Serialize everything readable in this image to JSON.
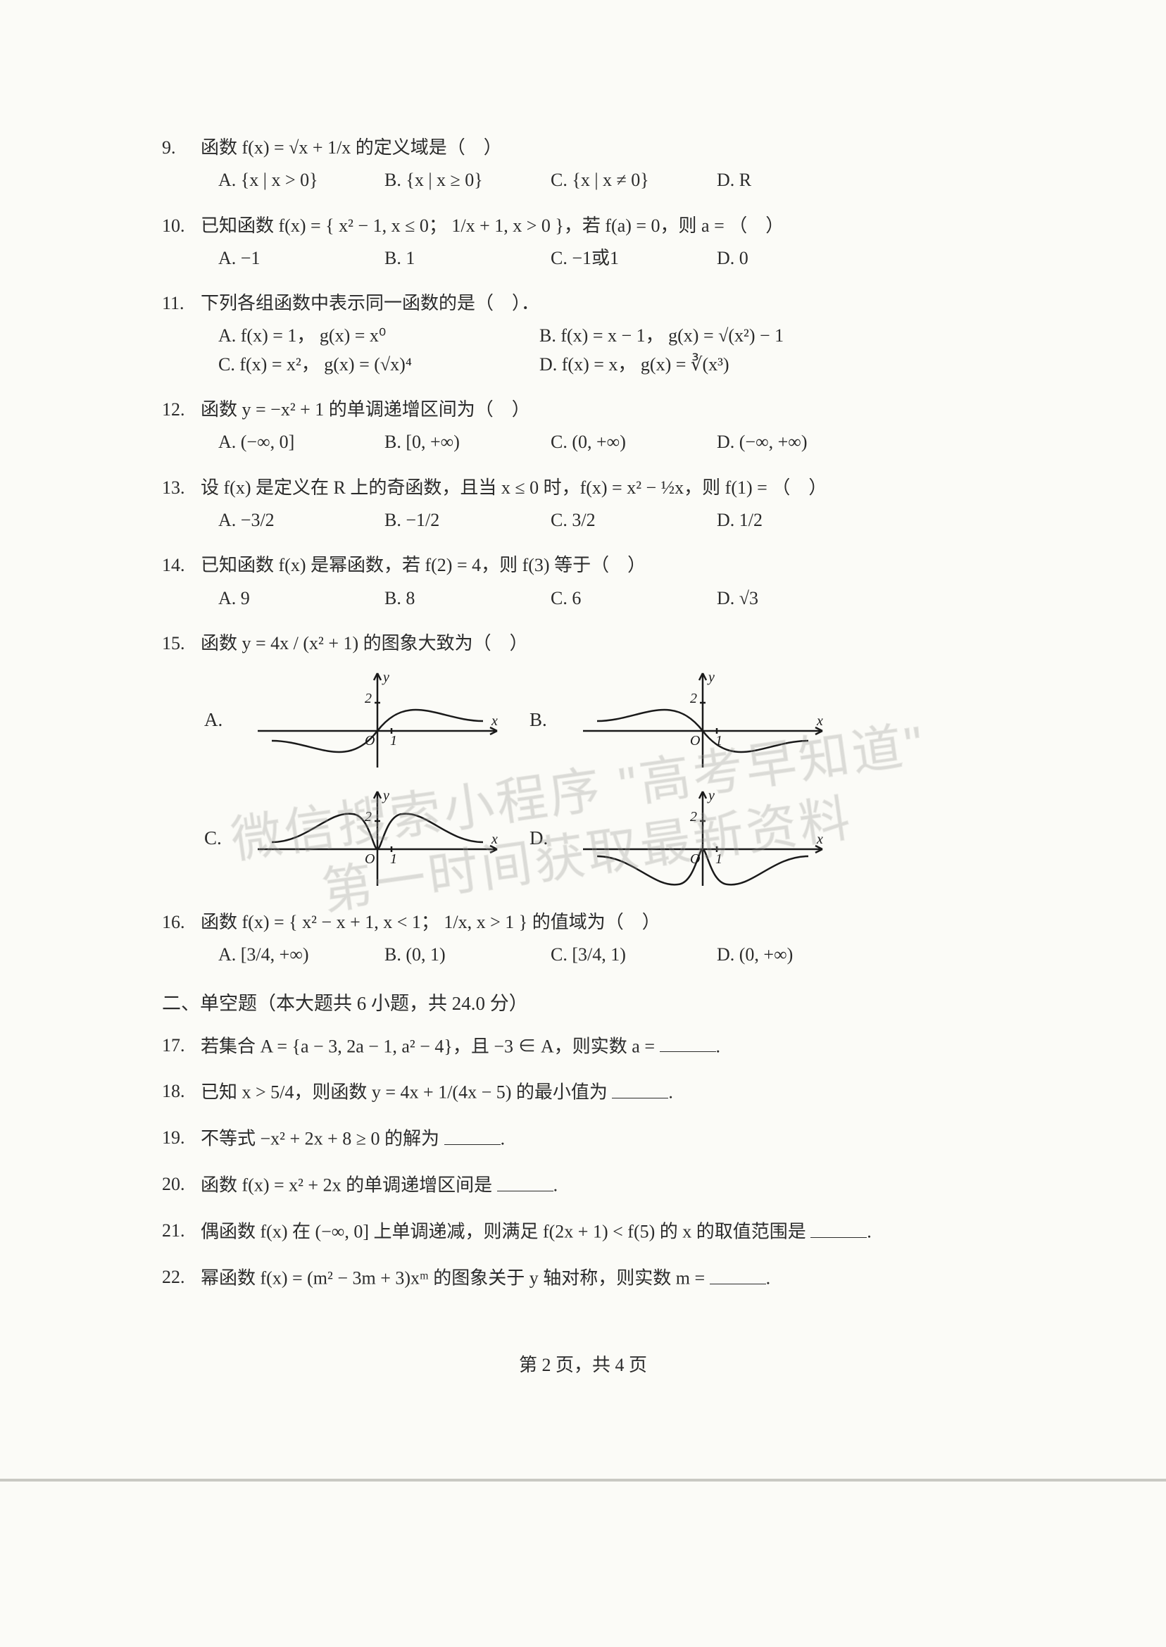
{
  "watermark": {
    "line1": "微信搜索小程序 \"高考早知道\"",
    "line2": "第一时间获取最新资料",
    "stroke_color": "#bfbfba",
    "fill_opacity": 0.28,
    "fontsize": 72,
    "rotate_deg": -8
  },
  "page": {
    "background_color": "#fbfbf7",
    "text_color": "#2b2b2b",
    "fontsize": 26
  },
  "footer": "第 2 页，共 4 页",
  "section2_title": "二、单空题（本大题共 6 小题，共 24.0 分）",
  "questions": [
    {
      "num": "9.",
      "stem": "函数 f(x) = √x + 1/x 的定义域是（　）",
      "opts": [
        "A. {x | x > 0}",
        "B. {x | x ≥ 0}",
        "C. {x | x ≠ 0}",
        "D. R"
      ],
      "cols": 4
    },
    {
      "num": "10.",
      "stem": "已知函数 f(x) = { x² − 1, x ≤ 0；  1/x + 1, x > 0 }，若 f(a) = 0，则 a = （　）",
      "opts": [
        "A. −1",
        "B. 1",
        "C. −1或1",
        "D. 0"
      ],
      "cols": 4
    },
    {
      "num": "11.",
      "stem": "下列各组函数中表示同一函数的是（　）．",
      "opts": [
        "A. f(x) = 1，  g(x) = x⁰",
        "B. f(x) = x − 1，  g(x) = √(x²) − 1",
        "C. f(x) = x²，  g(x) = (√x)⁴",
        "D. f(x) = x，  g(x) = ∛(x³)"
      ],
      "cols": 2
    },
    {
      "num": "12.",
      "stem": "函数 y = −x² + 1 的单调递增区间为（　）",
      "opts": [
        "A. (−∞, 0]",
        "B. [0, +∞)",
        "C. (0, +∞)",
        "D. (−∞, +∞)"
      ],
      "cols": 4
    },
    {
      "num": "13.",
      "stem": "设 f(x) 是定义在 R 上的奇函数，且当 x ≤ 0 时，f(x) = x² − ½x，则 f(1) = （　）",
      "opts": [
        "A. −3/2",
        "B. −1/2",
        "C. 3/2",
        "D. 1/2"
      ],
      "cols": 4
    },
    {
      "num": "14.",
      "stem": "已知函数 f(x) 是幂函数，若 f(2) = 4，则 f(3) 等于（　）",
      "opts": [
        "A. 9",
        "B. 8",
        "C. 6",
        "D. √3"
      ],
      "cols": 4
    },
    {
      "num": "15.",
      "stem": "函数 y = 4x / (x² + 1) 的图象大致为（　）",
      "opts": [],
      "cols": 0,
      "graph_set": true
    },
    {
      "num": "16.",
      "stem": "函数 f(x) = { x² − x + 1, x < 1；  1/x, x > 1 } 的值域为（　）",
      "opts": [
        "A. [3/4, +∞)",
        "B. (0, 1)",
        "C. [3/4, 1)",
        "D. (0, +∞)"
      ],
      "cols": 4
    }
  ],
  "fills": [
    {
      "num": "17.",
      "text_before": "若集合 A = {a − 3, 2a − 1, a² − 4}，且 −3 ∈ A，则实数 a = ",
      "text_after": "."
    },
    {
      "num": "18.",
      "text_before": "已知 x > 5/4，则函数 y = 4x + 1/(4x − 5) 的最小值为 ",
      "text_after": "."
    },
    {
      "num": "19.",
      "text_before": "不等式 −x² + 2x + 8 ≥ 0 的解为 ",
      "text_after": "."
    },
    {
      "num": "20.",
      "text_before": "函数 f(x) = x² + 2x 的单调递增区间是 ",
      "text_after": "."
    },
    {
      "num": "21.",
      "text_before": "偶函数 f(x) 在 (−∞, 0] 上单调递减，则满足 f(2x + 1) < f(5) 的 x 的取值范围是 ",
      "text_after": "."
    },
    {
      "num": "22.",
      "text_before": "幂函数 f(x) = (m² − 3m + 3)xᵐ 的图象关于 y 轴对称，则实数 m = ",
      "text_after": "."
    }
  ],
  "graphs": {
    "axis_color": "#1a1a1a",
    "curve_color": "#1a1a1a",
    "stroke_width": 2.5,
    "label_y": "y",
    "label_x": "x",
    "label_O": "O",
    "label_1": "1",
    "label_2": "2",
    "items": [
      {
        "label": "A.",
        "curve": "odd_pos"
      },
      {
        "label": "B.",
        "curve": "odd_neg"
      },
      {
        "label": "C.",
        "curve": "even_up"
      },
      {
        "label": "D.",
        "curve": "even_down"
      }
    ]
  }
}
